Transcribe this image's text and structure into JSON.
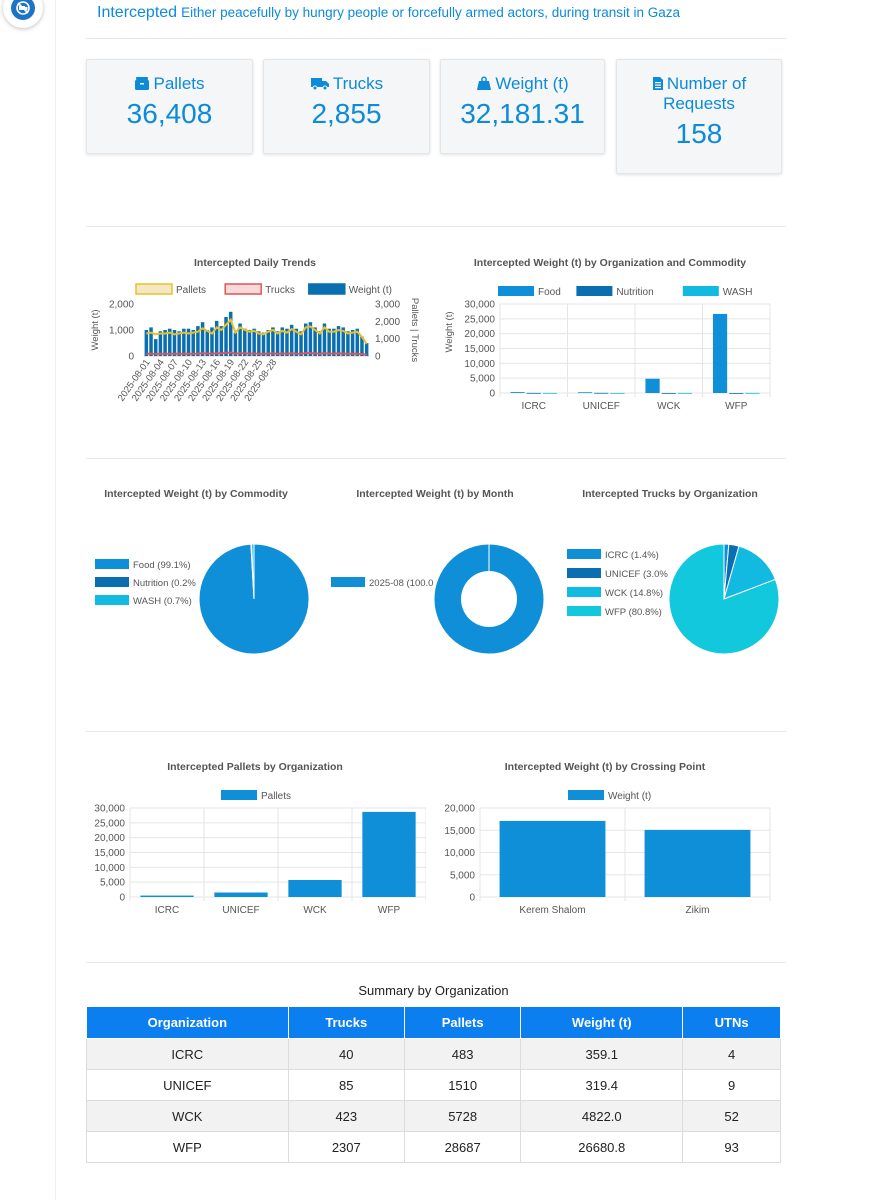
{
  "header": {
    "title": "Intercepted",
    "subtitle": "Either peacefully by hungry people or forcefully armed actors, during transit in Gaza"
  },
  "colors": {
    "accent": "#0d8ad8",
    "table_header": "#0b7ff0",
    "food": "#0f8fd8",
    "nutrition": "#0a6fb0",
    "wash": "#12b9e0",
    "trucks_org": "#12c8dc"
  },
  "stats": [
    {
      "icon": "box-icon",
      "label": "Pallets",
      "value": "36,408"
    },
    {
      "icon": "truck-icon",
      "label": "Trucks",
      "value": "2,855"
    },
    {
      "icon": "weight-icon",
      "label": "Weight (t)",
      "value": "32,181.31"
    },
    {
      "icon": "document-icon",
      "label": "Number of Requests",
      "value": "158"
    }
  ],
  "chart_data": [
    {
      "id": "daily",
      "type": "line",
      "title": "Intercepted Daily Trends",
      "legend": [
        "Pallets",
        "Trucks",
        "Weight (t)"
      ],
      "ylabel": "Weight (t)",
      "y2label": "Pallets | Trucks",
      "y_ticks": [
        "2,000",
        "1,000",
        "0"
      ],
      "y2_ticks": [
        "3,000",
        "2,000",
        "1,000",
        "0"
      ],
      "ylim": [
        0,
        2000
      ],
      "y2lim": [
        0,
        3000
      ],
      "x_tick_labels": [
        "2025-08-01",
        "2025-08-04",
        "2025-08-07",
        "2025-08-10",
        "2025-08-13",
        "2025-08-16",
        "2025-08-19",
        "2025-08-22",
        "2025-08-25",
        "2025-08-28"
      ],
      "weight": [
        1000,
        1100,
        650,
        950,
        1000,
        1050,
        1000,
        950,
        1050,
        1050,
        1000,
        1150,
        1300,
        1000,
        1100,
        1350,
        1150,
        1500,
        1700,
        900,
        1250,
        1050,
        1000,
        1050,
        950,
        900,
        1000,
        1100,
        950,
        1100,
        1050,
        1200,
        1050,
        950,
        1250,
        1300,
        1100,
        950,
        1250,
        1050,
        1050,
        1150,
        1100,
        950,
        1000,
        1050,
        750,
        500
      ],
      "pallets": [
        1300,
        1350,
        1250,
        1300,
        1300,
        1350,
        1250,
        1300,
        1350,
        1300,
        1350,
        1400,
        1600,
        1450,
        1300,
        1650,
        1500,
        1800,
        2100,
        1350,
        1650,
        1500,
        1400,
        1450,
        1300,
        1250,
        1400,
        1500,
        1300,
        1450,
        1350,
        1550,
        1400,
        1250,
        1650,
        1700,
        1500,
        1300,
        1650,
        1400,
        1400,
        1500,
        1450,
        1300,
        1350,
        1400,
        1100,
        700
      ],
      "trucks": [
        130,
        140,
        120,
        125,
        130,
        135,
        125,
        130,
        140,
        130,
        135,
        140,
        160,
        145,
        130,
        165,
        150,
        180,
        200,
        135,
        165,
        150,
        140,
        145,
        130,
        125,
        140,
        150,
        130,
        145,
        135,
        155,
        140,
        125,
        165,
        170,
        150,
        130,
        165,
        140,
        140,
        150,
        145,
        130,
        135,
        140,
        110,
        80
      ]
    },
    {
      "id": "org_commodity",
      "type": "bar",
      "title": "Intercepted Weight (t) by Organization and Commodity",
      "legend": [
        "Food",
        "Nutrition",
        "WASH"
      ],
      "categories": [
        "ICRC",
        "UNICEF",
        "WCK",
        "WFP"
      ],
      "series": [
        {
          "name": "Food",
          "values": [
            300,
            250,
            4800,
            26650
          ]
        },
        {
          "name": "Nutrition",
          "values": [
            30,
            50,
            0,
            0
          ]
        },
        {
          "name": "WASH",
          "values": [
            29,
            19,
            22,
            30
          ]
        }
      ],
      "y_ticks": [
        "30,000",
        "25,000",
        "20,000",
        "15,000",
        "10,000",
        "5,000",
        "0"
      ],
      "ylim": [
        0,
        30000
      ],
      "ylabel": "Weight (t)"
    },
    {
      "id": "commodity_pie",
      "type": "pie",
      "title": "Intercepted Weight (t) by Commodity",
      "labels": [
        "Food (99.1%)",
        "Nutrition (0.2%",
        "WASH (0.7%)"
      ],
      "values": [
        99.1,
        0.2,
        0.7
      ]
    },
    {
      "id": "month_doughnut",
      "type": "pie",
      "title": "Intercepted Weight (t) by Month",
      "labels": [
        "2025-08 (100.0"
      ],
      "values": [
        100
      ]
    },
    {
      "id": "trucks_org_pie",
      "type": "pie",
      "title": "Intercepted Trucks by Organization",
      "labels": [
        "ICRC (1.4%)",
        "UNICEF (3.0%",
        "WCK (14.8%)",
        "WFP (80.8%)"
      ],
      "values": [
        1.4,
        3.0,
        14.8,
        80.8
      ]
    },
    {
      "id": "pallets_org",
      "type": "bar",
      "title": "Intercepted Pallets by Organization",
      "legend": [
        "Pallets"
      ],
      "categories": [
        "ICRC",
        "UNICEF",
        "WCK",
        "WFP"
      ],
      "values": [
        483,
        1510,
        5728,
        28687
      ],
      "y_ticks": [
        "30,000",
        "25,000",
        "20,000",
        "15,000",
        "10,000",
        "5,000",
        "0"
      ],
      "ylim": [
        0,
        30000
      ]
    },
    {
      "id": "crossing",
      "type": "bar",
      "title": "Intercepted Weight (t) by Crossing Point",
      "legend": [
        "Weight (t)"
      ],
      "categories": [
        "Kerem Shalom",
        "Zikim"
      ],
      "values": [
        17100,
        15081
      ],
      "y_ticks": [
        "20,000",
        "15,000",
        "10,000",
        "5,000",
        "0"
      ],
      "ylim": [
        0,
        20000
      ]
    }
  ],
  "summary": {
    "title": "Summary by Organization",
    "columns": [
      "Organization",
      "Trucks",
      "Pallets",
      "Weight (t)",
      "UTNs"
    ],
    "rows": [
      [
        "ICRC",
        "40",
        "483",
        "359.1",
        "4"
      ],
      [
        "UNICEF",
        "85",
        "1510",
        "319.4",
        "9"
      ],
      [
        "WCK",
        "423",
        "5728",
        "4822.0",
        "52"
      ],
      [
        "WFP",
        "2307",
        "28687",
        "26680.8",
        "93"
      ]
    ]
  }
}
